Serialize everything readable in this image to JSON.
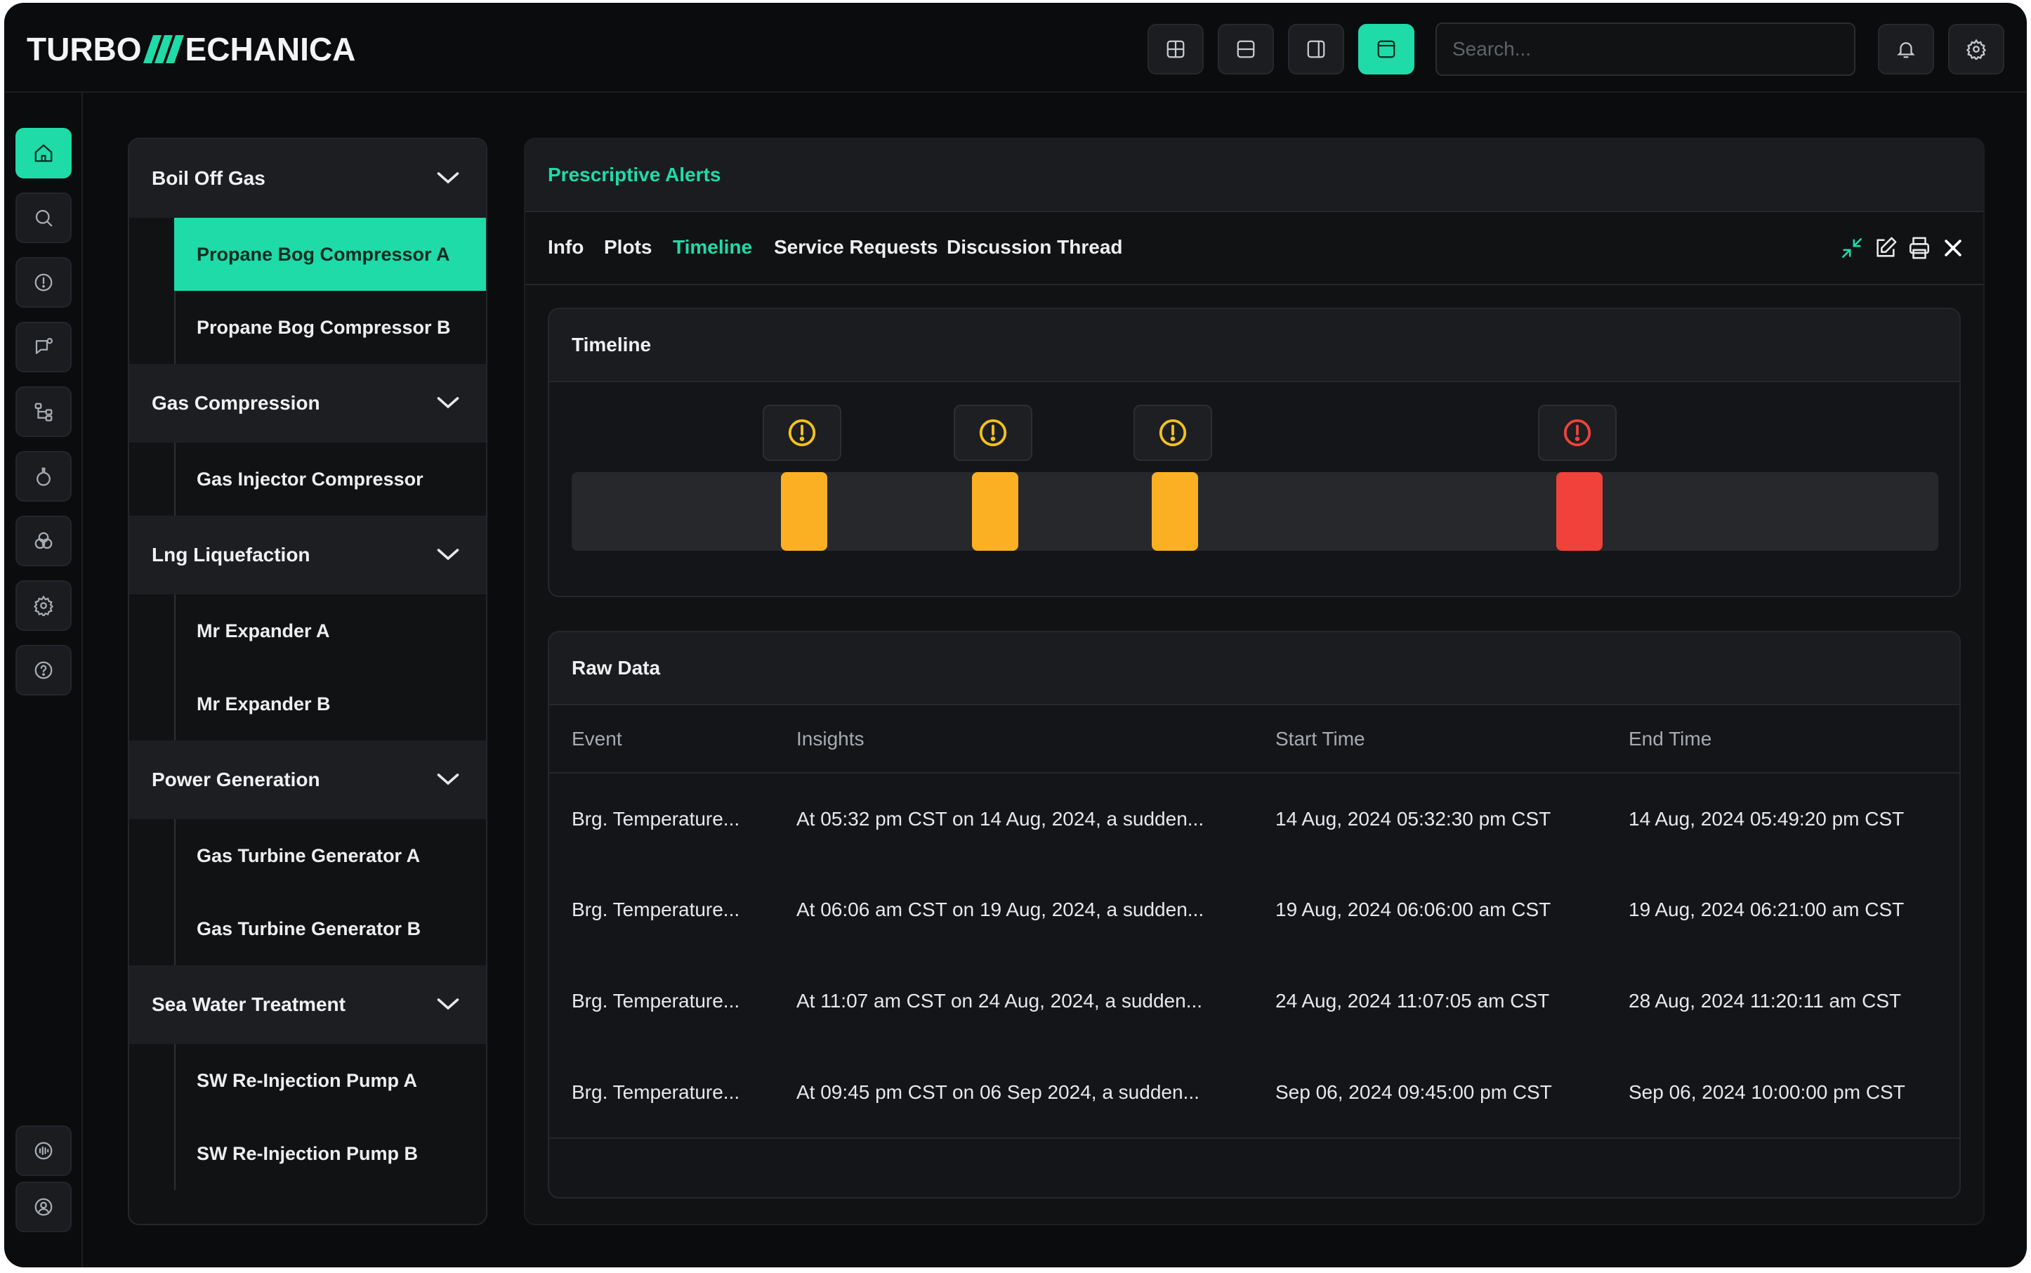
{
  "header": {
    "logo_left": "TURBO",
    "logo_right": "ECHANICA",
    "search_placeholder": "Search...",
    "accent": "#1fdba8"
  },
  "rail": {
    "icons": [
      "home-icon",
      "search-icon",
      "alert-icon",
      "chat-icon",
      "hierarchy-icon",
      "flask-icon",
      "palette-icon",
      "settings-icon",
      "help-icon"
    ],
    "bottom_icons": [
      "audio-icon",
      "user-icon"
    ]
  },
  "tree": {
    "groups": [
      {
        "label": "Boil Off Gas",
        "items": [
          "Propane Bog Compressor A",
          "Propane Bog Compressor B"
        ]
      },
      {
        "label": "Gas Compression",
        "items": [
          "Gas Injector Compressor"
        ]
      },
      {
        "label": "Lng Liquefaction",
        "items": [
          "Mr Expander A",
          "Mr Expander B"
        ]
      },
      {
        "label": "Power Generation",
        "items": [
          "Gas Turbine Generator A",
          "Gas Turbine Generator B"
        ]
      },
      {
        "label": "Sea Water Treatment",
        "items": [
          "SW Re-Injection Pump A",
          "SW Re-Injection Pump B"
        ]
      }
    ],
    "selected": "Propane Bog Compressor A"
  },
  "panel": {
    "title": "Prescriptive Alerts",
    "tabs": [
      "Info",
      "Plots",
      "Timeline",
      "Service Requests",
      "Discussion Thread"
    ],
    "active_tab": "Timeline"
  },
  "timeline": {
    "title": "Timeline",
    "events": [
      {
        "severity": "warning"
      },
      {
        "severity": "warning"
      },
      {
        "severity": "warning"
      },
      {
        "severity": "critical"
      }
    ],
    "colors": {
      "warning": "#fbb024",
      "critical": "#f0423a"
    }
  },
  "raw_data": {
    "title": "Raw Data",
    "columns": [
      "Event",
      "Insights",
      "Start Time",
      "End Time"
    ],
    "rows": [
      [
        "Brg. Temperature...",
        "At 05:32 pm CST on 14 Aug, 2024, a sudden...",
        "14 Aug, 2024 05:32:30 pm CST",
        "14 Aug, 2024 05:49:20 pm CST"
      ],
      [
        "Brg. Temperature...",
        "At 06:06 am CST on 19 Aug, 2024, a sudden...",
        "19 Aug, 2024 06:06:00 am CST",
        "19 Aug, 2024 06:21:00 am CST"
      ],
      [
        "Brg. Temperature...",
        "At 11:07 am CST on 24 Aug, 2024, a sudden...",
        "24 Aug, 2024 11:07:05 am CST",
        "28 Aug, 2024 11:20:11 am CST"
      ],
      [
        "Brg. Temperature...",
        "At 09:45 pm CST on 06 Sep 2024, a sudden...",
        "Sep 06, 2024 09:45:00 pm CST",
        "Sep 06, 2024 10:00:00 pm CST"
      ]
    ]
  }
}
